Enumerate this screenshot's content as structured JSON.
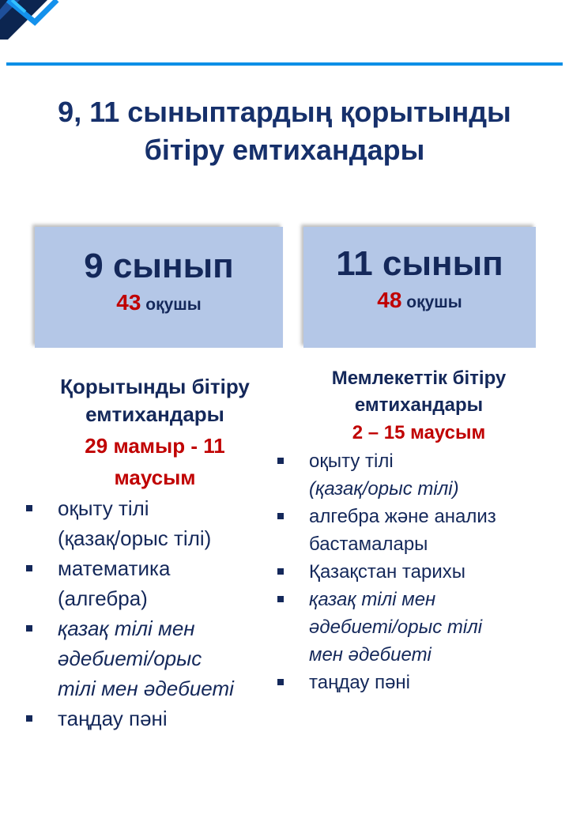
{
  "title": "9, 11 сыныптардың қорытынды бітіру емтихандары",
  "title_lines": [
    "9, 11 сыныптардың қорытынды",
    "бітіру емтихандары"
  ],
  "colors": {
    "accent": "#0a8fe6",
    "box": "#b4c7e7",
    "text": "#14285a",
    "highlight": "#c00000"
  },
  "grade9": {
    "class": "9 сынып",
    "count": "43",
    "count_unit": "оқушы",
    "exam_heading": [
      "Қорытынды бітіру",
      "емтихандары"
    ],
    "dates": [
      "29 мамыр - 11",
      "маусым"
    ],
    "subjects": [
      {
        "lines": [
          "оқыту тілі",
          "(қазақ/орыс тілі)"
        ],
        "italic": false
      },
      {
        "lines": [
          "математика",
          "(алгебра)"
        ],
        "italic": false
      },
      {
        "lines": [
          "қазақ тілі мен",
          "әдебиеті/орыс",
          "тілі мен әдебиеті"
        ],
        "italic": true
      },
      {
        "lines": [
          "таңдау пәні"
        ],
        "italic": false
      }
    ]
  },
  "grade11": {
    "class": "11 сынып",
    "count": "48",
    "count_unit": "оқушы",
    "exam_heading": [
      "Мемлекеттік бітіру",
      "емтихандары"
    ],
    "dates": [
      "2 – 15  маусым"
    ],
    "subjects": [
      {
        "lines": [
          "оқыту тілі",
          "(қазақ/орыс тілі)"
        ],
        "italic": false,
        "italic_second": true
      },
      {
        "lines": [
          "алгебра және анализ",
          "бастамалары"
        ],
        "italic": false
      },
      {
        "lines": [
          "Қазақстан тарихы"
        ],
        "italic": false
      },
      {
        "lines": [
          "қазақ тілі мен",
          "әдебиеті/орыс тілі",
          "мен әдебиеті"
        ],
        "italic": true
      },
      {
        "lines": [
          "таңдау пәні"
        ],
        "italic": false
      }
    ]
  }
}
